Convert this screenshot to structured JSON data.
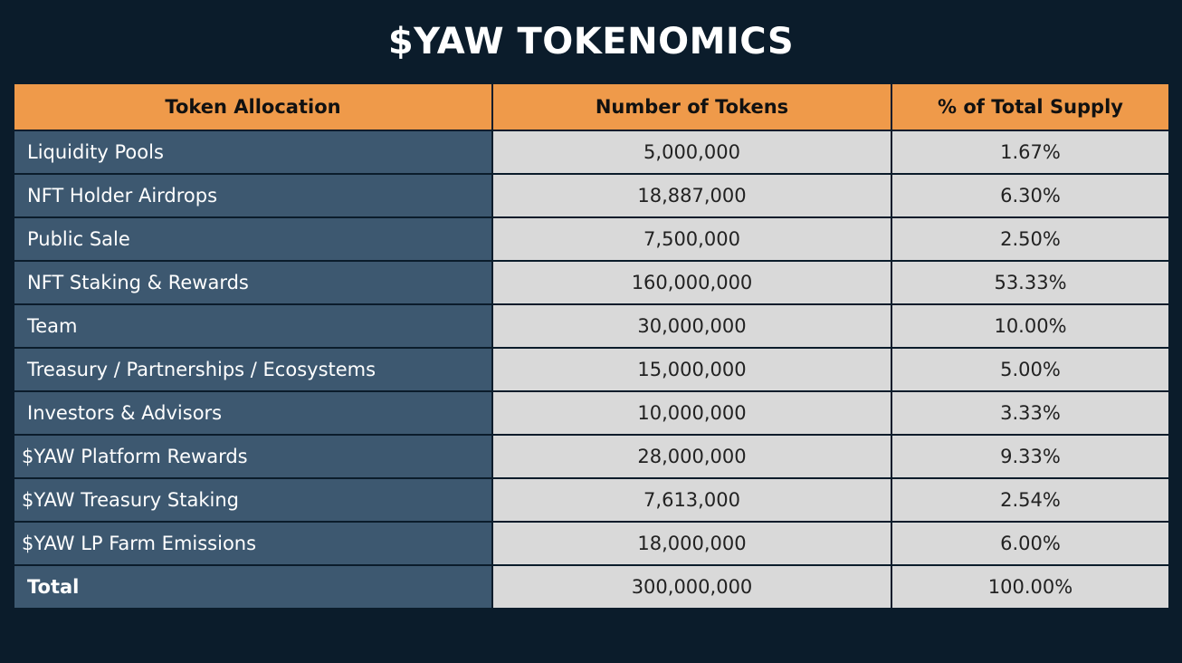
{
  "title": "$YAW TOKENOMICS",
  "chart_data": {
    "type": "table",
    "title": "$YAW TOKENOMICS",
    "columns": [
      "Token Allocation",
      "Number of Tokens",
      "% of Total Supply"
    ],
    "rows": [
      {
        "allocation": "Liquidity Pools",
        "tokens": "5,000,000",
        "percent": "1.67%"
      },
      {
        "allocation": "NFT Holder Airdrops",
        "tokens": "18,887,000",
        "percent": "6.30%"
      },
      {
        "allocation": "Public Sale",
        "tokens": "7,500,000",
        "percent": "2.50%"
      },
      {
        "allocation": "NFT Staking & Rewards",
        "tokens": "160,000,000",
        "percent": "53.33%"
      },
      {
        "allocation": "Team",
        "tokens": "30,000,000",
        "percent": "10.00%"
      },
      {
        "allocation": "Treasury / Partnerships / Ecosystems",
        "tokens": "15,000,000",
        "percent": "5.00%"
      },
      {
        "allocation": "Investors & Advisors",
        "tokens": "10,000,000",
        "percent": "3.33%"
      },
      {
        "allocation": "$YAW Platform Rewards",
        "tokens": "28,000,000",
        "percent": "9.33%"
      },
      {
        "allocation": "$YAW Treasury Staking",
        "tokens": "7,613,000",
        "percent": "2.54%"
      },
      {
        "allocation": "$YAW LP Farm Emissions",
        "tokens": "18,000,000",
        "percent": "6.00%"
      }
    ],
    "total": {
      "allocation": "Total",
      "tokens": "300,000,000",
      "percent": "100.00%"
    }
  },
  "colors": {
    "background": "#0b1c2b",
    "header": "#ef9a4a",
    "allocation_cell": "#3d5870",
    "value_cell": "#d9d9d9"
  }
}
